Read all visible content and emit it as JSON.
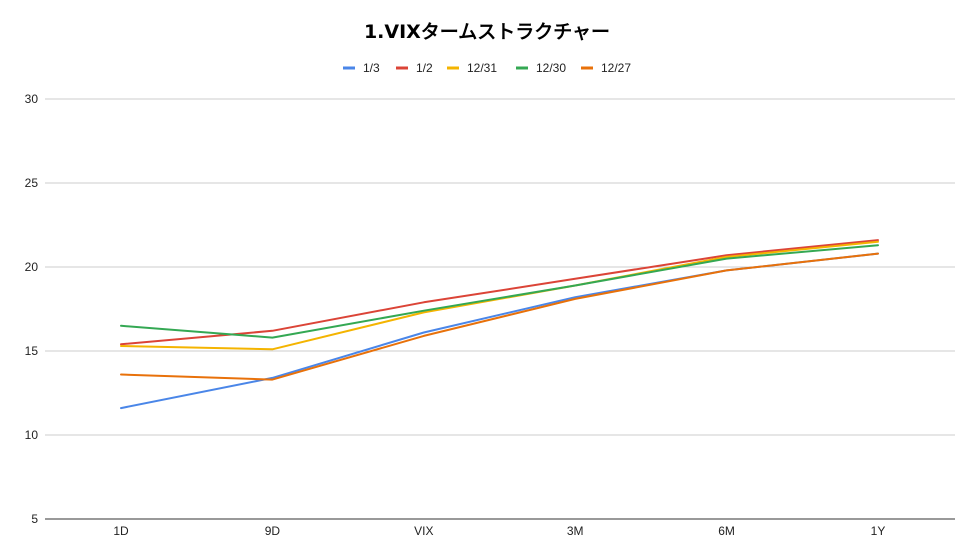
{
  "chart_data": {
    "type": "line",
    "title": "1.VIXタームストラクチャー",
    "xlabel": "",
    "ylabel": "",
    "categories": [
      "1D",
      "9D",
      "VIX",
      "3M",
      "6M",
      "1Y"
    ],
    "ylim": [
      5,
      30
    ],
    "yticks": [
      5,
      10,
      15,
      20,
      25,
      30
    ],
    "grid": true,
    "legend_position": "top",
    "series": [
      {
        "name": "1/3",
        "color": "#4a86e8",
        "values": [
          11.6,
          13.4,
          16.1,
          18.2,
          19.8,
          20.8
        ]
      },
      {
        "name": "1/2",
        "color": "#db4437",
        "values": [
          15.4,
          16.2,
          17.9,
          19.3,
          20.7,
          21.6
        ]
      },
      {
        "name": "12/31",
        "color": "#f4b400",
        "values": [
          15.3,
          15.1,
          17.3,
          18.9,
          20.6,
          21.5
        ]
      },
      {
        "name": "12/30",
        "color": "#34a853",
        "values": [
          16.5,
          15.8,
          17.4,
          18.9,
          20.5,
          21.3
        ]
      },
      {
        "name": "12/27",
        "color": "#e8710a",
        "values": [
          13.6,
          13.3,
          15.9,
          18.1,
          19.8,
          20.8
        ]
      }
    ]
  }
}
